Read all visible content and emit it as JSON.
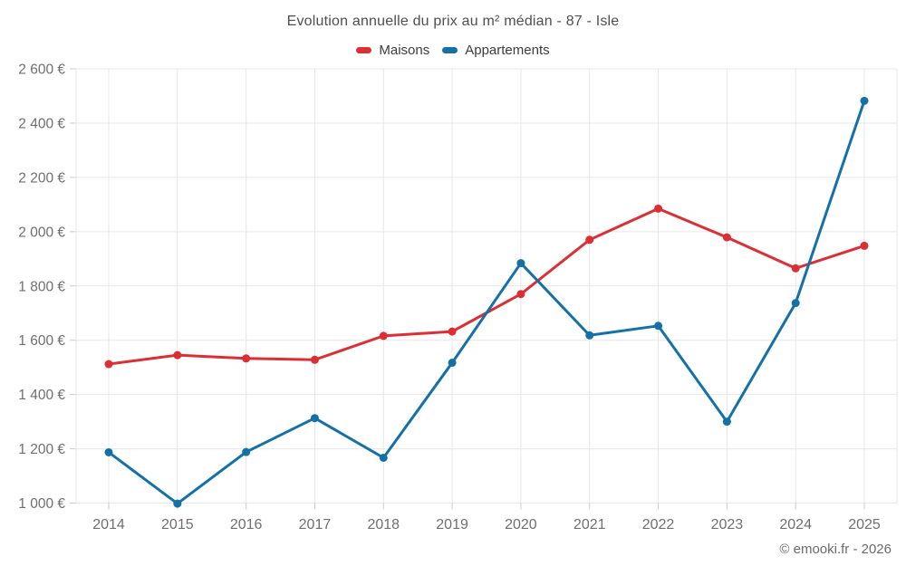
{
  "footer": {
    "copyright": "© emooki.fr - 2026"
  },
  "chart_data": {
    "type": "line",
    "title": "Evolution annuelle du prix au m² médian - 87 - Isle",
    "xlabel": "",
    "ylabel": "",
    "categories": [
      "2014",
      "2015",
      "2016",
      "2017",
      "2018",
      "2019",
      "2020",
      "2021",
      "2022",
      "2023",
      "2024",
      "2025"
    ],
    "series": [
      {
        "name": "Maisons",
        "color": "#dc2f34",
        "marker": "circle",
        "values": [
          1512,
          1545,
          1533,
          1528,
          1616,
          1632,
          1770,
          1970,
          2085,
          1979,
          1865,
          1948
        ]
      },
      {
        "name": "Appartements",
        "color": "#1471a8",
        "marker": "circle",
        "values": [
          1187,
          998,
          1188,
          1313,
          1167,
          1517,
          1884,
          1618,
          1653,
          1300,
          1737,
          2482
        ]
      }
    ],
    "ylim": [
      1000,
      2600
    ],
    "y_ticks": [
      {
        "value": 2600,
        "label": "2 600 €"
      },
      {
        "value": 2400,
        "label": "2 400 €"
      },
      {
        "value": 2200,
        "label": "2 200 €"
      },
      {
        "value": 2000,
        "label": "2 000 €"
      },
      {
        "value": 1800,
        "label": "1 800 €"
      },
      {
        "value": 1600,
        "label": "1 600 €"
      },
      {
        "value": 1400,
        "label": "1 400 €"
      },
      {
        "value": 1200,
        "label": "1 200 €"
      },
      {
        "value": 1000,
        "label": "1 000 €"
      }
    ],
    "grid": true,
    "legend_position": "top",
    "colors": {
      "grid": "#e7e7e7",
      "tick": "#cccccc",
      "axis_text": "#6f6f6f"
    }
  }
}
